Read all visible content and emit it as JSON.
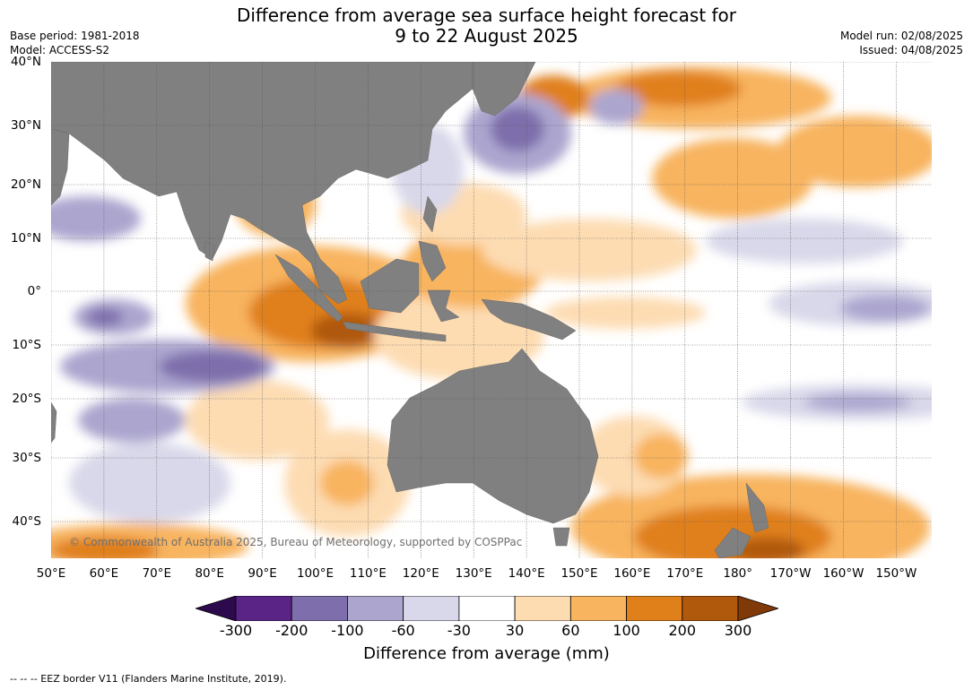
{
  "header": {
    "title_line1": "Difference from average sea surface height forecast for",
    "title_line2": "9 to 22 August 2025",
    "base_period": "Base period: 1981-2018",
    "model": "Model: ACCESS-S2",
    "model_run": "Model run: 02/08/2025",
    "issued": "Issued: 04/08/2025"
  },
  "map": {
    "lat_labels": [
      "40°N",
      "30°N",
      "20°N",
      "10°N",
      "0°",
      "10°S",
      "20°S",
      "30°S",
      "40°S"
    ],
    "lon_labels": [
      "50°E",
      "60°E",
      "70°E",
      "80°E",
      "90°E",
      "100°E",
      "110°E",
      "120°E",
      "130°E",
      "140°E",
      "150°E",
      "160°E",
      "170°E",
      "180°",
      "170°W",
      "160°W",
      "150°W"
    ],
    "copyright": "© Commonwealth of Australia 2025, Bureau of Meteorology, supported by COSPPac",
    "land_color": "#808080"
  },
  "colorbar": {
    "ticks": [
      "-300",
      "-200",
      "-100",
      "-60",
      "-30",
      "30",
      "60",
      "100",
      "200",
      "300"
    ],
    "colors": [
      "#2d0a4b",
      "#5a2487",
      "#7e6eab",
      "#aca6cf",
      "#d8d8ea",
      "#ffffff",
      "#fddcb2",
      "#f8b45e",
      "#e0801a",
      "#b0580b",
      "#7f3a08"
    ],
    "title": "Difference from average (mm)"
  },
  "footnote": "--  --  -- EEZ border V11 (Flanders Marine Institute, 2019)."
}
